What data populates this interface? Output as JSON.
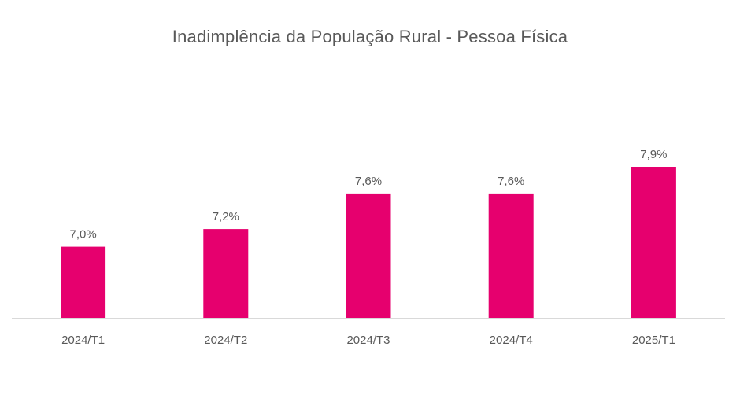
{
  "chart_data": {
    "type": "bar",
    "title": "Inadimplência da População Rural - Pessoa Física",
    "categories": [
      "2024/T1",
      "2024/T2",
      "2024/T3",
      "2024/T4",
      "2025/T1"
    ],
    "values": [
      7.0,
      7.2,
      7.6,
      7.6,
      7.9
    ],
    "data_labels": [
      "7,0%",
      "7,2%",
      "7,6%",
      "7,6%",
      "7,9%"
    ],
    "bar_color": "#E6006E",
    "grid": false,
    "legend": "none"
  }
}
